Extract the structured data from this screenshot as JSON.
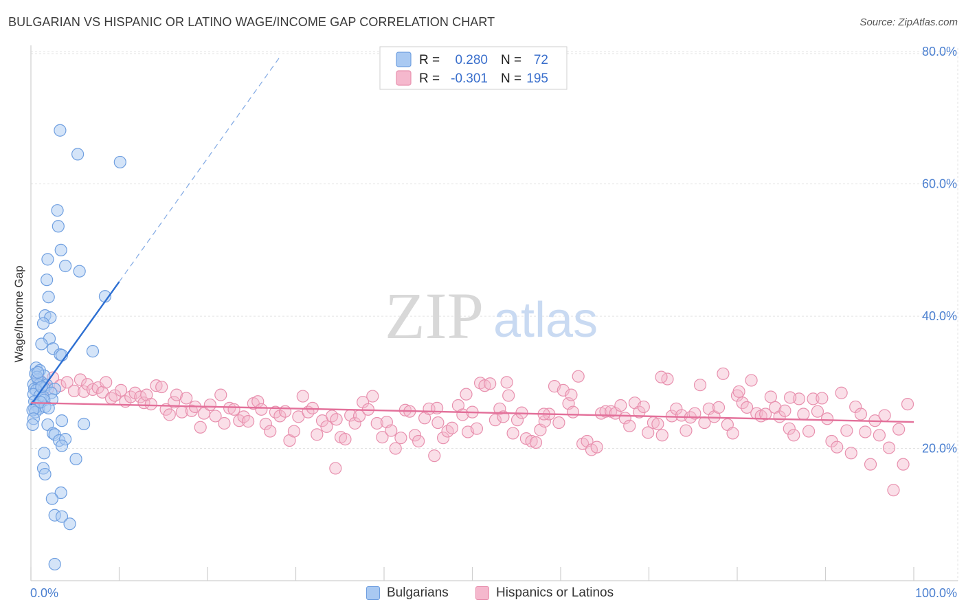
{
  "title": "BULGARIAN VS HISPANIC OR LATINO WAGE/INCOME GAP CORRELATION CHART",
  "source": "Source: ZipAtlas.com",
  "watermark": {
    "zip": "ZIP",
    "atlas": "atlas"
  },
  "colors": {
    "blue_fill": "#a9c9f2",
    "blue_stroke": "#6f9fe0",
    "blue_line": "#2d6fd2",
    "pink_fill": "#f5b8cd",
    "pink_stroke": "#e890ae",
    "pink_line": "#e3709a",
    "axis_text": "#4a7fd0"
  },
  "legend_top": {
    "rows": [
      {
        "r_label": "R =",
        "r_value": "0.280",
        "n_label": "N =",
        "n_value": "72"
      },
      {
        "r_label": "R =",
        "r_value": "-0.301",
        "n_label": "N =",
        "n_value": "195"
      }
    ]
  },
  "legend_bottom": {
    "items": [
      {
        "label": "Bulgarians"
      },
      {
        "label": "Hispanics or Latinos"
      }
    ]
  },
  "chart_data": {
    "type": "scatter",
    "title": "BULGARIAN VS HISPANIC OR LATINO WAGE/INCOME GAP CORRELATION CHART",
    "xlabel": "",
    "ylabel": "Wage/Income Gap",
    "xlim": [
      0,
      100
    ],
    "ylim": [
      0,
      82
    ],
    "x_tick_labels": [
      "0.0%",
      "100.0%"
    ],
    "y_ticks": [
      20,
      40,
      60,
      80
    ],
    "y_tick_labels": [
      "20.0%",
      "40.0%",
      "60.0%",
      "80.0%"
    ],
    "grid": true,
    "series": [
      {
        "name": "Bulgarians",
        "R": 0.28,
        "N": 72,
        "trend": {
          "x0": 0,
          "y0": 26.6,
          "x1": 10,
          "y1": 45.2,
          "dashed_to_x": 28.3,
          "dashed_to_y": 79.4
        },
        "points": [
          [
            3.3,
            68.1
          ],
          [
            5.3,
            64.5
          ],
          [
            10.1,
            63.3
          ],
          [
            3.0,
            56.0
          ],
          [
            3.1,
            53.6
          ],
          [
            3.4,
            50.0
          ],
          [
            1.9,
            48.6
          ],
          [
            3.9,
            47.6
          ],
          [
            5.5,
            46.8
          ],
          [
            1.8,
            45.5
          ],
          [
            2.0,
            42.9
          ],
          [
            8.4,
            43.0
          ],
          [
            1.6,
            40.1
          ],
          [
            2.2,
            39.8
          ],
          [
            1.4,
            38.9
          ],
          [
            2.1,
            36.6
          ],
          [
            1.2,
            35.8
          ],
          [
            2.5,
            35.1
          ],
          [
            7.0,
            34.7
          ],
          [
            3.3,
            34.2
          ],
          [
            3.5,
            34.1
          ],
          [
            0.6,
            32.2
          ],
          [
            0.5,
            31.3
          ],
          [
            1.0,
            31.8
          ],
          [
            1.5,
            31.0
          ],
          [
            0.8,
            30.4
          ],
          [
            1.2,
            30.0
          ],
          [
            0.3,
            29.7
          ],
          [
            0.9,
            29.6
          ],
          [
            1.8,
            29.6
          ],
          [
            0.4,
            29.0
          ],
          [
            1.5,
            29.1
          ],
          [
            2.7,
            29.0
          ],
          [
            0.6,
            28.8
          ],
          [
            2.3,
            28.4
          ],
          [
            0.3,
            28.2
          ],
          [
            1.0,
            28.0
          ],
          [
            2.4,
            27.4
          ],
          [
            0.4,
            27.1
          ],
          [
            1.4,
            27.8
          ],
          [
            1.5,
            27.3
          ],
          [
            0.6,
            26.5
          ],
          [
            0.9,
            26.0
          ],
          [
            1.6,
            26.3
          ],
          [
            0.4,
            26.0
          ],
          [
            0.5,
            25.5
          ],
          [
            3.5,
            24.2
          ],
          [
            6.0,
            23.7
          ],
          [
            1.9,
            23.6
          ],
          [
            2.5,
            22.3
          ],
          [
            2.7,
            22.1
          ],
          [
            3.2,
            21.2
          ],
          [
            3.9,
            21.4
          ],
          [
            3.5,
            20.4
          ],
          [
            1.5,
            19.3
          ],
          [
            5.1,
            18.4
          ],
          [
            1.4,
            17.0
          ],
          [
            1.6,
            16.1
          ],
          [
            3.4,
            13.3
          ],
          [
            2.4,
            12.4
          ],
          [
            2.7,
            9.9
          ],
          [
            3.5,
            9.7
          ],
          [
            4.4,
            8.6
          ],
          [
            2.7,
            2.5
          ],
          [
            0.2,
            25.8
          ],
          [
            0.3,
            24.5
          ],
          [
            1.1,
            27.0
          ],
          [
            0.7,
            30.8
          ],
          [
            1.2,
            29.3
          ],
          [
            0.2,
            23.6
          ],
          [
            2.0,
            26.1
          ],
          [
            0.8,
            31.5
          ]
        ]
      },
      {
        "name": "Hispanics or Latinos",
        "R": -0.301,
        "N": 195,
        "trend": {
          "x0": 0,
          "y0": 26.9,
          "x1": 100,
          "y1": 24.0
        },
        "points": [
          [
            0.9,
            30.5
          ],
          [
            1.4,
            29.7
          ],
          [
            1.9,
            29.0
          ],
          [
            2.5,
            30.7
          ],
          [
            3.3,
            29.5
          ],
          [
            4.1,
            30.0
          ],
          [
            4.9,
            28.7
          ],
          [
            5.6,
            30.4
          ],
          [
            6.0,
            28.6
          ],
          [
            6.4,
            29.7
          ],
          [
            7.0,
            28.9
          ],
          [
            7.6,
            29.2
          ],
          [
            8.1,
            28.5
          ],
          [
            8.5,
            30.0
          ],
          [
            9.1,
            27.6
          ],
          [
            9.5,
            28.0
          ],
          [
            10.2,
            28.8
          ],
          [
            10.7,
            27.1
          ],
          [
            11.3,
            27.8
          ],
          [
            11.8,
            28.4
          ],
          [
            12.4,
            27.8
          ],
          [
            12.8,
            26.9
          ],
          [
            13.1,
            28.1
          ],
          [
            13.6,
            26.7
          ],
          [
            14.2,
            29.5
          ],
          [
            14.8,
            29.3
          ],
          [
            15.3,
            25.9
          ],
          [
            15.7,
            25.1
          ],
          [
            16.2,
            27.0
          ],
          [
            16.5,
            28.1
          ],
          [
            17.1,
            25.5
          ],
          [
            17.6,
            27.6
          ],
          [
            18.2,
            25.7
          ],
          [
            18.6,
            26.3
          ],
          [
            19.2,
            23.2
          ],
          [
            19.6,
            25.3
          ],
          [
            20.3,
            26.6
          ],
          [
            20.9,
            24.9
          ],
          [
            21.5,
            28.1
          ],
          [
            21.9,
            23.8
          ],
          [
            22.5,
            26.1
          ],
          [
            23.0,
            25.9
          ],
          [
            23.6,
            24.2
          ],
          [
            24.1,
            24.8
          ],
          [
            24.6,
            24.1
          ],
          [
            25.2,
            26.8
          ],
          [
            25.7,
            27.1
          ],
          [
            26.1,
            25.9
          ],
          [
            26.6,
            23.7
          ],
          [
            27.1,
            22.6
          ],
          [
            27.7,
            25.5
          ],
          [
            28.2,
            24.9
          ],
          [
            28.8,
            25.6
          ],
          [
            29.3,
            21.2
          ],
          [
            29.8,
            22.6
          ],
          [
            30.3,
            24.8
          ],
          [
            30.8,
            27.9
          ],
          [
            31.4,
            25.5
          ],
          [
            31.9,
            26.1
          ],
          [
            32.4,
            22.1
          ],
          [
            33.0,
            24.2
          ],
          [
            33.5,
            23.3
          ],
          [
            34.1,
            24.9
          ],
          [
            34.6,
            24.4
          ],
          [
            35.1,
            21.7
          ],
          [
            35.6,
            21.4
          ],
          [
            36.2,
            25.0
          ],
          [
            36.7,
            23.8
          ],
          [
            37.2,
            24.9
          ],
          [
            37.6,
            27.0
          ],
          [
            38.2,
            25.9
          ],
          [
            38.7,
            27.9
          ],
          [
            39.2,
            23.8
          ],
          [
            39.8,
            21.7
          ],
          [
            40.3,
            24.0
          ],
          [
            40.8,
            22.7
          ],
          [
            41.3,
            20.0
          ],
          [
            41.9,
            21.6
          ],
          [
            42.4,
            25.8
          ],
          [
            42.9,
            25.6
          ],
          [
            43.5,
            22.0
          ],
          [
            43.9,
            21.1
          ],
          [
            44.6,
            24.6
          ],
          [
            45.1,
            26.0
          ],
          [
            45.7,
            18.9
          ],
          [
            46.1,
            23.9
          ],
          [
            46.7,
            21.6
          ],
          [
            47.2,
            22.6
          ],
          [
            47.7,
            23.1
          ],
          [
            48.4,
            26.5
          ],
          [
            48.9,
            25.1
          ],
          [
            49.5,
            22.5
          ],
          [
            50.0,
            25.5
          ],
          [
            50.5,
            23.0
          ],
          [
            50.9,
            29.9
          ],
          [
            51.4,
            29.5
          ],
          [
            52.0,
            29.8
          ],
          [
            52.6,
            24.3
          ],
          [
            53.1,
            26.0
          ],
          [
            53.5,
            24.8
          ],
          [
            54.1,
            28.0
          ],
          [
            54.6,
            22.3
          ],
          [
            55.1,
            24.3
          ],
          [
            55.6,
            25.4
          ],
          [
            56.1,
            21.5
          ],
          [
            56.7,
            21.1
          ],
          [
            57.2,
            20.9
          ],
          [
            57.7,
            22.8
          ],
          [
            58.2,
            24.1
          ],
          [
            58.7,
            25.2
          ],
          [
            59.3,
            29.4
          ],
          [
            59.8,
            23.9
          ],
          [
            60.3,
            28.8
          ],
          [
            60.9,
            26.8
          ],
          [
            61.4,
            25.5
          ],
          [
            62.0,
            30.9
          ],
          [
            62.5,
            20.7
          ],
          [
            63.0,
            21.1
          ],
          [
            63.5,
            19.8
          ],
          [
            64.1,
            20.2
          ],
          [
            64.6,
            25.3
          ],
          [
            65.1,
            25.6
          ],
          [
            65.7,
            25.6
          ],
          [
            66.2,
            25.3
          ],
          [
            66.8,
            26.5
          ],
          [
            67.3,
            24.6
          ],
          [
            67.8,
            23.4
          ],
          [
            68.4,
            26.9
          ],
          [
            68.9,
            25.5
          ],
          [
            69.4,
            26.3
          ],
          [
            69.9,
            22.4
          ],
          [
            70.5,
            23.9
          ],
          [
            71.0,
            23.7
          ],
          [
            71.5,
            22.0
          ],
          [
            72.1,
            30.5
          ],
          [
            72.6,
            24.9
          ],
          [
            73.1,
            26.0
          ],
          [
            73.7,
            25.0
          ],
          [
            74.2,
            22.7
          ],
          [
            74.7,
            24.7
          ],
          [
            75.2,
            25.3
          ],
          [
            75.8,
            29.6
          ],
          [
            76.3,
            23.9
          ],
          [
            76.8,
            26.0
          ],
          [
            77.4,
            24.8
          ],
          [
            77.9,
            26.2
          ],
          [
            78.4,
            31.3
          ],
          [
            78.9,
            23.6
          ],
          [
            79.5,
            22.3
          ],
          [
            80.0,
            28.0
          ],
          [
            80.6,
            26.9
          ],
          [
            81.1,
            26.2
          ],
          [
            81.6,
            30.3
          ],
          [
            82.2,
            25.3
          ],
          [
            82.7,
            24.9
          ],
          [
            83.2,
            25.2
          ],
          [
            83.8,
            27.8
          ],
          [
            84.3,
            26.2
          ],
          [
            84.8,
            24.8
          ],
          [
            85.4,
            25.7
          ],
          [
            85.9,
            23.0
          ],
          [
            86.4,
            22.0
          ],
          [
            87.0,
            27.5
          ],
          [
            87.5,
            25.2
          ],
          [
            88.1,
            22.6
          ],
          [
            88.6,
            27.5
          ],
          [
            89.1,
            25.6
          ],
          [
            89.6,
            27.6
          ],
          [
            90.2,
            24.5
          ],
          [
            90.7,
            21.1
          ],
          [
            91.3,
            20.2
          ],
          [
            91.8,
            28.4
          ],
          [
            92.4,
            22.7
          ],
          [
            92.9,
            19.3
          ],
          [
            93.4,
            26.3
          ],
          [
            94.0,
            25.2
          ],
          [
            94.5,
            22.5
          ],
          [
            95.1,
            17.6
          ],
          [
            95.6,
            24.2
          ],
          [
            96.1,
            22.0
          ],
          [
            96.7,
            25.0
          ],
          [
            97.2,
            20.1
          ],
          [
            97.7,
            13.7
          ],
          [
            98.3,
            22.9
          ],
          [
            98.8,
            17.6
          ],
          [
            99.3,
            26.7
          ],
          [
            34.5,
            17.0
          ],
          [
            46.0,
            26.1
          ],
          [
            53.9,
            30.0
          ],
          [
            58.1,
            25.2
          ],
          [
            71.4,
            30.8
          ],
          [
            80.2,
            28.6
          ],
          [
            86.0,
            27.7
          ],
          [
            61.2,
            28.1
          ],
          [
            49.3,
            28.2
          ]
        ]
      }
    ]
  }
}
